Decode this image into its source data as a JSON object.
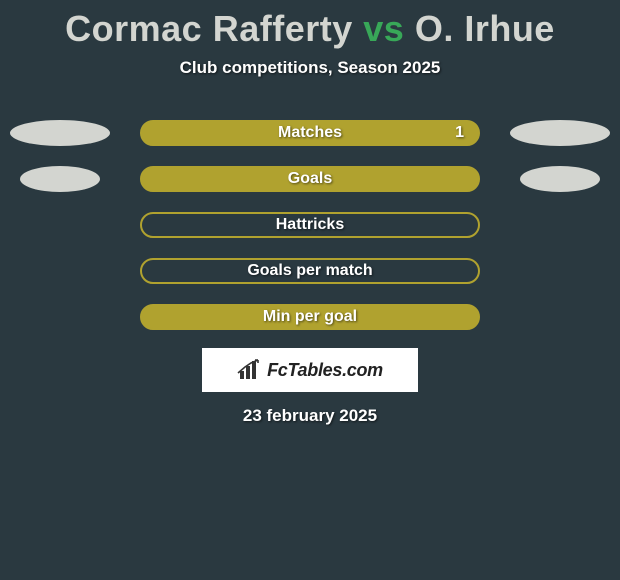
{
  "title": {
    "player1": "Cormac Rafferty",
    "vs": "vs",
    "player2": "O. Irhue",
    "player1_color": "#d3d5d0",
    "vs_color": "#38a858",
    "player2_color": "#d3d5d0"
  },
  "subtitle": "Club competitions, Season 2025",
  "background_color": "#2a3940",
  "rows": [
    {
      "label": "Matches",
      "value_right": "1",
      "pill_fill": "#b0a22f",
      "pill_border_color": "#b0a22f",
      "pill_border_width": 2,
      "ellipse_left_color": "#d3d5d0",
      "ellipse_right_color": "#d3d5d0",
      "ellipse_left_width": 100,
      "ellipse_right_width": 100
    },
    {
      "label": "Goals",
      "value_right": "",
      "pill_fill": "#b0a22f",
      "pill_border_color": "#b0a22f",
      "pill_border_width": 2,
      "ellipse_left_color": "#d3d5d0",
      "ellipse_right_color": "#d3d5d0",
      "ellipse_left_width": 80,
      "ellipse_right_width": 80
    },
    {
      "label": "Hattricks",
      "value_right": "",
      "pill_fill": "transparent",
      "pill_border_color": "#b0a22f",
      "pill_border_width": 2,
      "ellipse_left_color": "",
      "ellipse_right_color": "",
      "ellipse_left_width": 0,
      "ellipse_right_width": 0
    },
    {
      "label": "Goals per match",
      "value_right": "",
      "pill_fill": "transparent",
      "pill_border_color": "#b0a22f",
      "pill_border_width": 2,
      "ellipse_left_color": "",
      "ellipse_right_color": "",
      "ellipse_left_width": 0,
      "ellipse_right_width": 0
    },
    {
      "label": "Min per goal",
      "value_right": "",
      "pill_fill": "#b0a22f",
      "pill_border_color": "#b0a22f",
      "pill_border_width": 2,
      "ellipse_left_color": "",
      "ellipse_right_color": "",
      "ellipse_left_width": 0,
      "ellipse_right_width": 0
    }
  ],
  "logo": {
    "text": "FcTables.com",
    "icon_name": "bar-chart-icon"
  },
  "date": "23 february 2025"
}
